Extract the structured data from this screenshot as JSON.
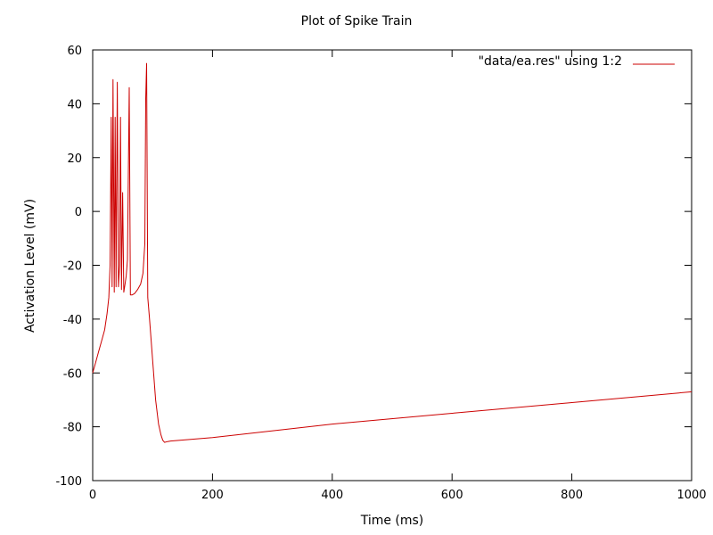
{
  "chart_data": {
    "type": "line",
    "title": "Plot of Spike Train",
    "xlabel": "Time (ms)",
    "ylabel": "Activation Level (mV)",
    "xlim": [
      0,
      1000
    ],
    "ylim": [
      -100,
      60
    ],
    "x_ticks": [
      "0",
      "200",
      "400",
      "600",
      "800",
      "1000"
    ],
    "y_ticks": [
      "-100",
      "-80",
      "-60",
      "-40",
      "-20",
      "0",
      "20",
      "40",
      "60"
    ],
    "grid": false,
    "legend_position": "top-right",
    "legend": [
      "\"data/ea.res\" using 1:2"
    ],
    "series": [
      {
        "name": "\"data/ea.res\" using 1:2",
        "color": "#cc0000",
        "x": [
          0,
          5,
          10,
          15,
          20,
          24,
          27,
          29,
          31,
          32.5,
          34,
          36,
          37.5,
          39,
          41,
          43,
          45,
          46.5,
          48,
          50,
          52,
          54,
          56,
          58,
          59.5,
          61,
          63,
          66,
          70,
          75,
          80,
          84,
          87,
          88.5,
          90,
          92,
          95,
          100,
          105,
          110,
          114,
          117,
          120,
          125,
          130,
          200,
          400,
          600,
          800,
          1000
        ],
        "y": [
          -60,
          -56,
          -52,
          -48,
          -44,
          -38,
          -32,
          -20,
          35,
          -28,
          49,
          -30,
          35,
          -28,
          48,
          -28,
          -20,
          35,
          -29,
          7,
          -30,
          -27,
          -24,
          -18,
          14,
          46,
          -31,
          -31,
          -30.5,
          -29,
          -27,
          -23,
          -12,
          42,
          55,
          -32,
          -40,
          -55,
          -70,
          -79,
          -83,
          -85,
          -85.8,
          -85.5,
          -85.3,
          -84,
          -79,
          -75,
          -71,
          -67
        ]
      }
    ]
  }
}
